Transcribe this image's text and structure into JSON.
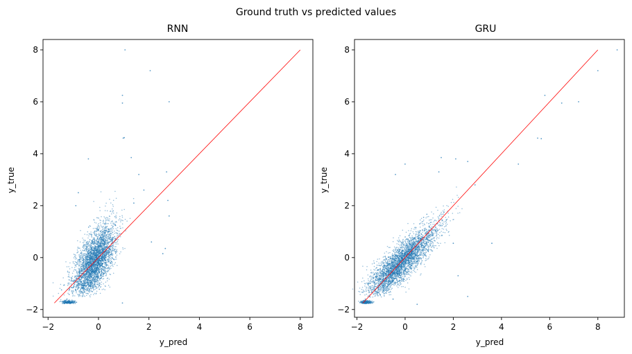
{
  "figure": {
    "suptitle": "Ground truth vs predicted values"
  },
  "chart_data": [
    {
      "type": "scatter",
      "title": "RNN",
      "xlabel": "y_pred",
      "ylabel": "y_true",
      "xlim": [
        -2.2,
        8.5
      ],
      "ylim": [
        -2.3,
        8.4
      ],
      "x_ticks": [
        -2,
        0,
        2,
        4,
        6,
        8
      ],
      "y_ticks": [
        -2,
        0,
        2,
        4,
        6,
        8
      ],
      "point_color": "#1f77b4",
      "reference_line": {
        "from": [
          -1.75,
          -1.75
        ],
        "to": [
          8.0,
          8.0
        ],
        "color": "#ff0000"
      },
      "series": [
        {
          "points": [
            [
              1.05,
              8.0
            ],
            [
              2.05,
              7.2
            ],
            [
              0.95,
              6.25
            ],
            [
              0.95,
              5.95
            ],
            [
              2.8,
              6.0
            ],
            [
              0.98,
              4.6
            ],
            [
              1.02,
              4.62
            ],
            [
              -0.4,
              3.8
            ],
            [
              1.3,
              3.85
            ],
            [
              2.7,
              3.3
            ],
            [
              2.75,
              2.2
            ],
            [
              2.8,
              1.6
            ],
            [
              2.1,
              0.6
            ],
            [
              2.65,
              0.35
            ],
            [
              2.55,
              0.15
            ],
            [
              -1.2,
              -1.7
            ],
            [
              -1.3,
              -1.65
            ],
            [
              -1.1,
              -1.75
            ],
            [
              -1.25,
              -1.6
            ],
            [
              0.95,
              -1.75
            ],
            [
              1.6,
              3.2
            ],
            [
              1.4,
              2.1
            ],
            [
              1.8,
              2.6
            ],
            [
              -0.9,
              2.0
            ],
            [
              -0.8,
              2.5
            ]
          ]
        }
      ]
    },
    {
      "type": "scatter",
      "title": "GRU",
      "xlabel": "y_pred",
      "ylabel": "y_true",
      "xlim": [
        -2.1,
        9.1
      ],
      "ylim": [
        -2.3,
        8.4
      ],
      "x_ticks": [
        -2,
        0,
        2,
        4,
        6,
        8
      ],
      "y_ticks": [
        -2,
        0,
        2,
        4,
        6,
        8
      ],
      "point_color": "#1f77b4",
      "reference_line": {
        "from": [
          -1.75,
          -1.75
        ],
        "to": [
          8.0,
          8.0
        ],
        "color": "#ff0000"
      },
      "series": [
        {
          "points": [
            [
              8.8,
              8.0
            ],
            [
              8.0,
              7.2
            ],
            [
              5.8,
              6.25
            ],
            [
              6.5,
              5.95
            ],
            [
              7.2,
              6.0
            ],
            [
              5.5,
              4.6
            ],
            [
              5.65,
              4.58
            ],
            [
              4.7,
              3.6
            ],
            [
              3.6,
              0.55
            ],
            [
              2.0,
              0.55
            ],
            [
              2.6,
              -1.5
            ],
            [
              2.2,
              -0.7
            ],
            [
              1.5,
              3.85
            ],
            [
              2.1,
              3.8
            ],
            [
              2.9,
              2.8
            ],
            [
              -1.6,
              -1.7
            ],
            [
              -1.7,
              -1.65
            ],
            [
              -1.5,
              -1.75
            ],
            [
              -1.65,
              -1.6
            ],
            [
              0.0,
              3.6
            ],
            [
              -0.4,
              3.2
            ],
            [
              1.4,
              3.3
            ],
            [
              2.6,
              3.7
            ],
            [
              0.5,
              -1.8
            ],
            [
              -0.5,
              -1.6
            ]
          ]
        }
      ]
    }
  ]
}
